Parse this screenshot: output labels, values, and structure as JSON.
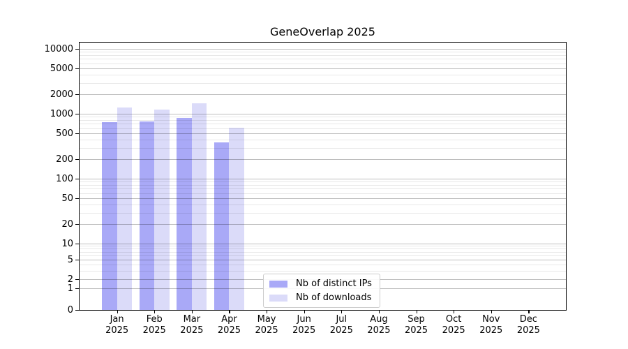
{
  "chart_data": {
    "type": "bar",
    "title": "GeneOverlap 2025",
    "xlabel": "",
    "ylabel": "",
    "yscale": "symlog",
    "ylim": [
      0,
      10000
    ],
    "grid": true,
    "legend_position": "lower center",
    "categories": [
      "Jan",
      "Feb",
      "Mar",
      "Apr",
      "May",
      "Jun",
      "Jul",
      "Aug",
      "Sep",
      "Oct",
      "Nov",
      "Dec"
    ],
    "category_year": "2025",
    "yticks": [
      0,
      1,
      2,
      5,
      10,
      20,
      50,
      100,
      200,
      500,
      1000,
      2000,
      5000,
      10000
    ],
    "series": [
      {
        "name": "Nb of distinct IPs",
        "color": "#a9a9f7",
        "values": [
          750,
          760,
          860,
          365,
          null,
          null,
          null,
          null,
          null,
          null,
          null,
          null
        ]
      },
      {
        "name": "Nb of downloads",
        "color": "#dbdbf9",
        "values": [
          1250,
          1170,
          1460,
          615,
          null,
          null,
          null,
          null,
          null,
          null,
          null,
          null
        ]
      }
    ]
  }
}
